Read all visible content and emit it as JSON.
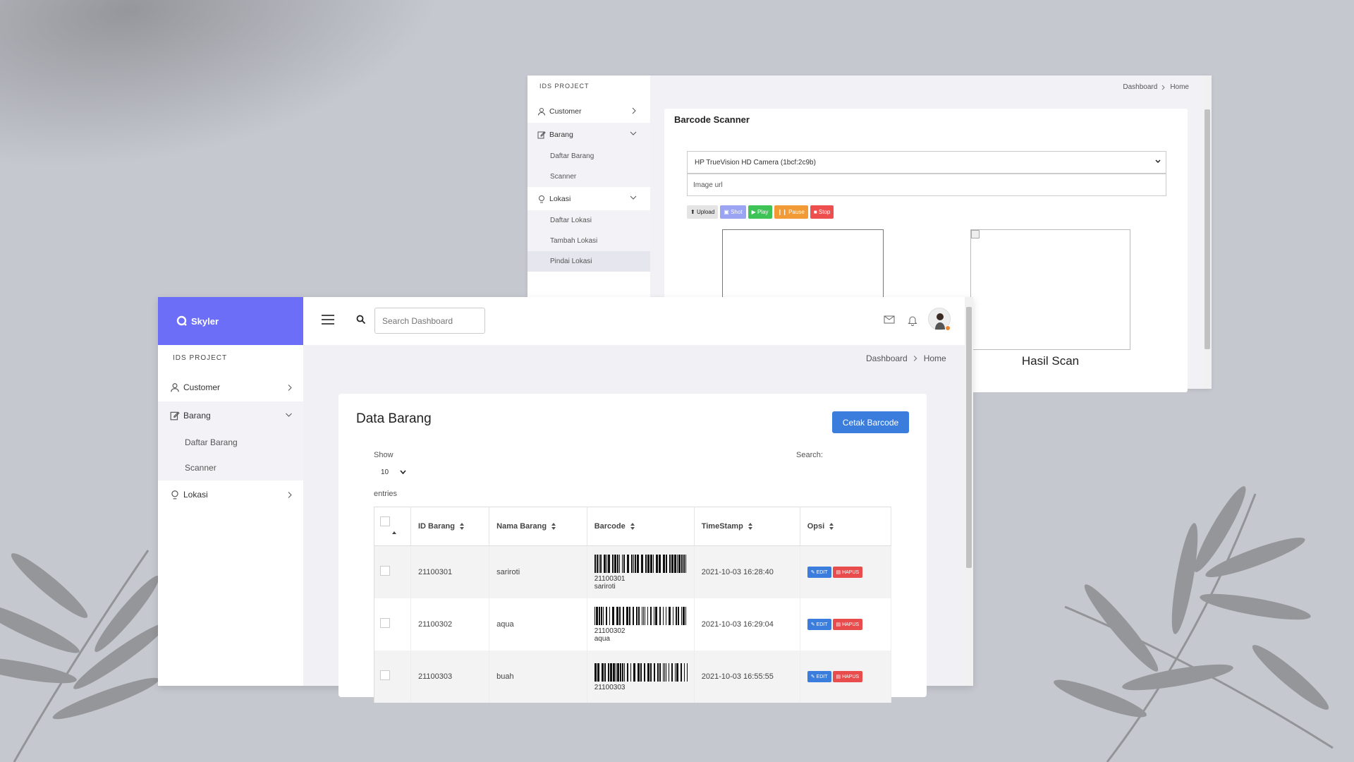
{
  "back_window": {
    "sidebar": {
      "project": "IDS PROJECT",
      "customer": "Customer",
      "barang": "Barang",
      "daftar_barang": "Daftar Barang",
      "scanner": "Scanner",
      "lokasi": "Lokasi",
      "daftar_lokasi": "Daftar Lokasi",
      "tambah_lokasi": "Tambah Lokasi",
      "pindai_lokasi": "Pindai Lokasi"
    },
    "breadcrumb": {
      "dashboard": "Dashboard",
      "home": "Home"
    },
    "card_title": "Barcode Scanner",
    "camera_select": "HP TrueVision HD Camera (1bcf:2c9b)",
    "image_url_placeholder": "Image url",
    "buttons": {
      "upload": "Upload",
      "shot": "Shot",
      "play": "Play",
      "pause": "Pause",
      "stop": "Stop"
    },
    "result_label": "Hasil Scan"
  },
  "front_window": {
    "brand": "Skyler",
    "search_placeholder": "Search Dashboard",
    "sidebar": {
      "project": "IDS PROJECT",
      "customer": "Customer",
      "barang": "Barang",
      "daftar_barang": "Daftar Barang",
      "scanner": "Scanner",
      "lokasi": "Lokasi"
    },
    "breadcrumb": {
      "dashboard": "Dashboard",
      "home": "Home"
    },
    "card_title": "Data Barang",
    "print_button": "Cetak Barcode",
    "show_label": "Show",
    "page_length": "10",
    "entries_label": "entries",
    "search_label": "Search:",
    "table": {
      "headers": [
        "ID Barang",
        "Nama Barang",
        "Barcode",
        "TimeStamp",
        "Opsi"
      ],
      "edit_label": "EDIT",
      "delete_label": "HAPUS",
      "rows": [
        {
          "id": "21100301",
          "nama": "sariroti",
          "barcode_num": "21100301",
          "barcode_name": "sariroti",
          "timestamp": "2021-10-03 16:28:40"
        },
        {
          "id": "21100302",
          "nama": "aqua",
          "barcode_num": "21100302",
          "barcode_name": "aqua",
          "timestamp": "2021-10-03 16:29:04"
        },
        {
          "id": "21100303",
          "nama": "buah",
          "barcode_num": "21100303",
          "barcode_name": "",
          "timestamp": "2021-10-03 16:55:55"
        }
      ]
    }
  },
  "colors": {
    "accent": "#6c6ef7",
    "primary_button": "#3b7ddd",
    "danger": "#e94c4c",
    "play": "#3ec356",
    "pause": "#f29a36",
    "shot": "#9aa4f2"
  }
}
